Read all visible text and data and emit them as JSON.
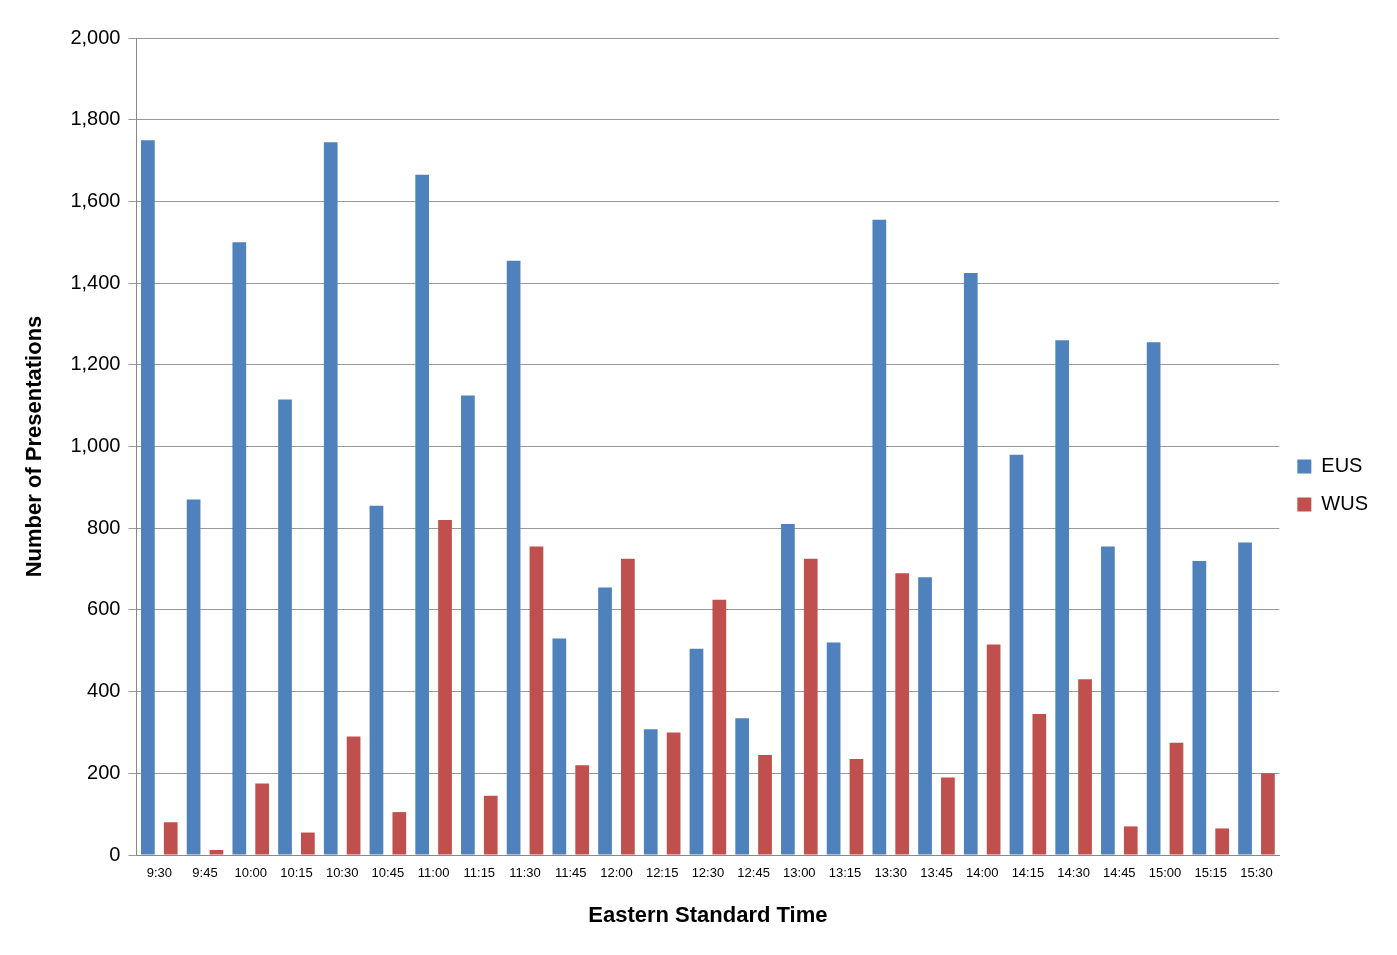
{
  "chart_data": {
    "type": "bar",
    "xlabel": "Eastern Standard Time",
    "ylabel": "Number of Presentations",
    "categories": [
      "9:30",
      "9:45",
      "10:00",
      "10:15",
      "10:30",
      "10:45",
      "11:00",
      "11:15",
      "11:30",
      "11:45",
      "12:00",
      "12:15",
      "12:30",
      "12:45",
      "13:00",
      "13:15",
      "13:30",
      "13:45",
      "14:00",
      "14:15",
      "14:30",
      "14:45",
      "15:00",
      "15:15",
      "15:30"
    ],
    "series": [
      {
        "name": "EUS",
        "color": "#4f81bd",
        "values": [
          1750,
          870,
          1500,
          1115,
          1745,
          855,
          1665,
          1125,
          1455,
          530,
          655,
          308,
          505,
          335,
          810,
          520,
          1555,
          680,
          1425,
          980,
          1260,
          755,
          1255,
          720,
          765
        ]
      },
      {
        "name": "WUS",
        "color": "#c0504d",
        "values": [
          80,
          12,
          175,
          55,
          290,
          105,
          820,
          145,
          755,
          220,
          725,
          300,
          625,
          245,
          725,
          235,
          690,
          190,
          515,
          345,
          430,
          70,
          275,
          65,
          200
        ]
      }
    ],
    "ylim": [
      0,
      2000
    ],
    "yticks": [
      {
        "value": 0,
        "label": "0"
      },
      {
        "value": 200,
        "label": "200"
      },
      {
        "value": 400,
        "label": "400"
      },
      {
        "value": 600,
        "label": "600"
      },
      {
        "value": 800,
        "label": "800"
      },
      {
        "value": 1000,
        "label": "1,000"
      },
      {
        "value": 1200,
        "label": "1,200"
      },
      {
        "value": 1400,
        "label": "1,400"
      },
      {
        "value": 1600,
        "label": "1,600"
      },
      {
        "value": 1800,
        "label": "1,800"
      },
      {
        "value": 2000,
        "label": "2,000"
      }
    ],
    "grid": "y",
    "legend": "right"
  }
}
